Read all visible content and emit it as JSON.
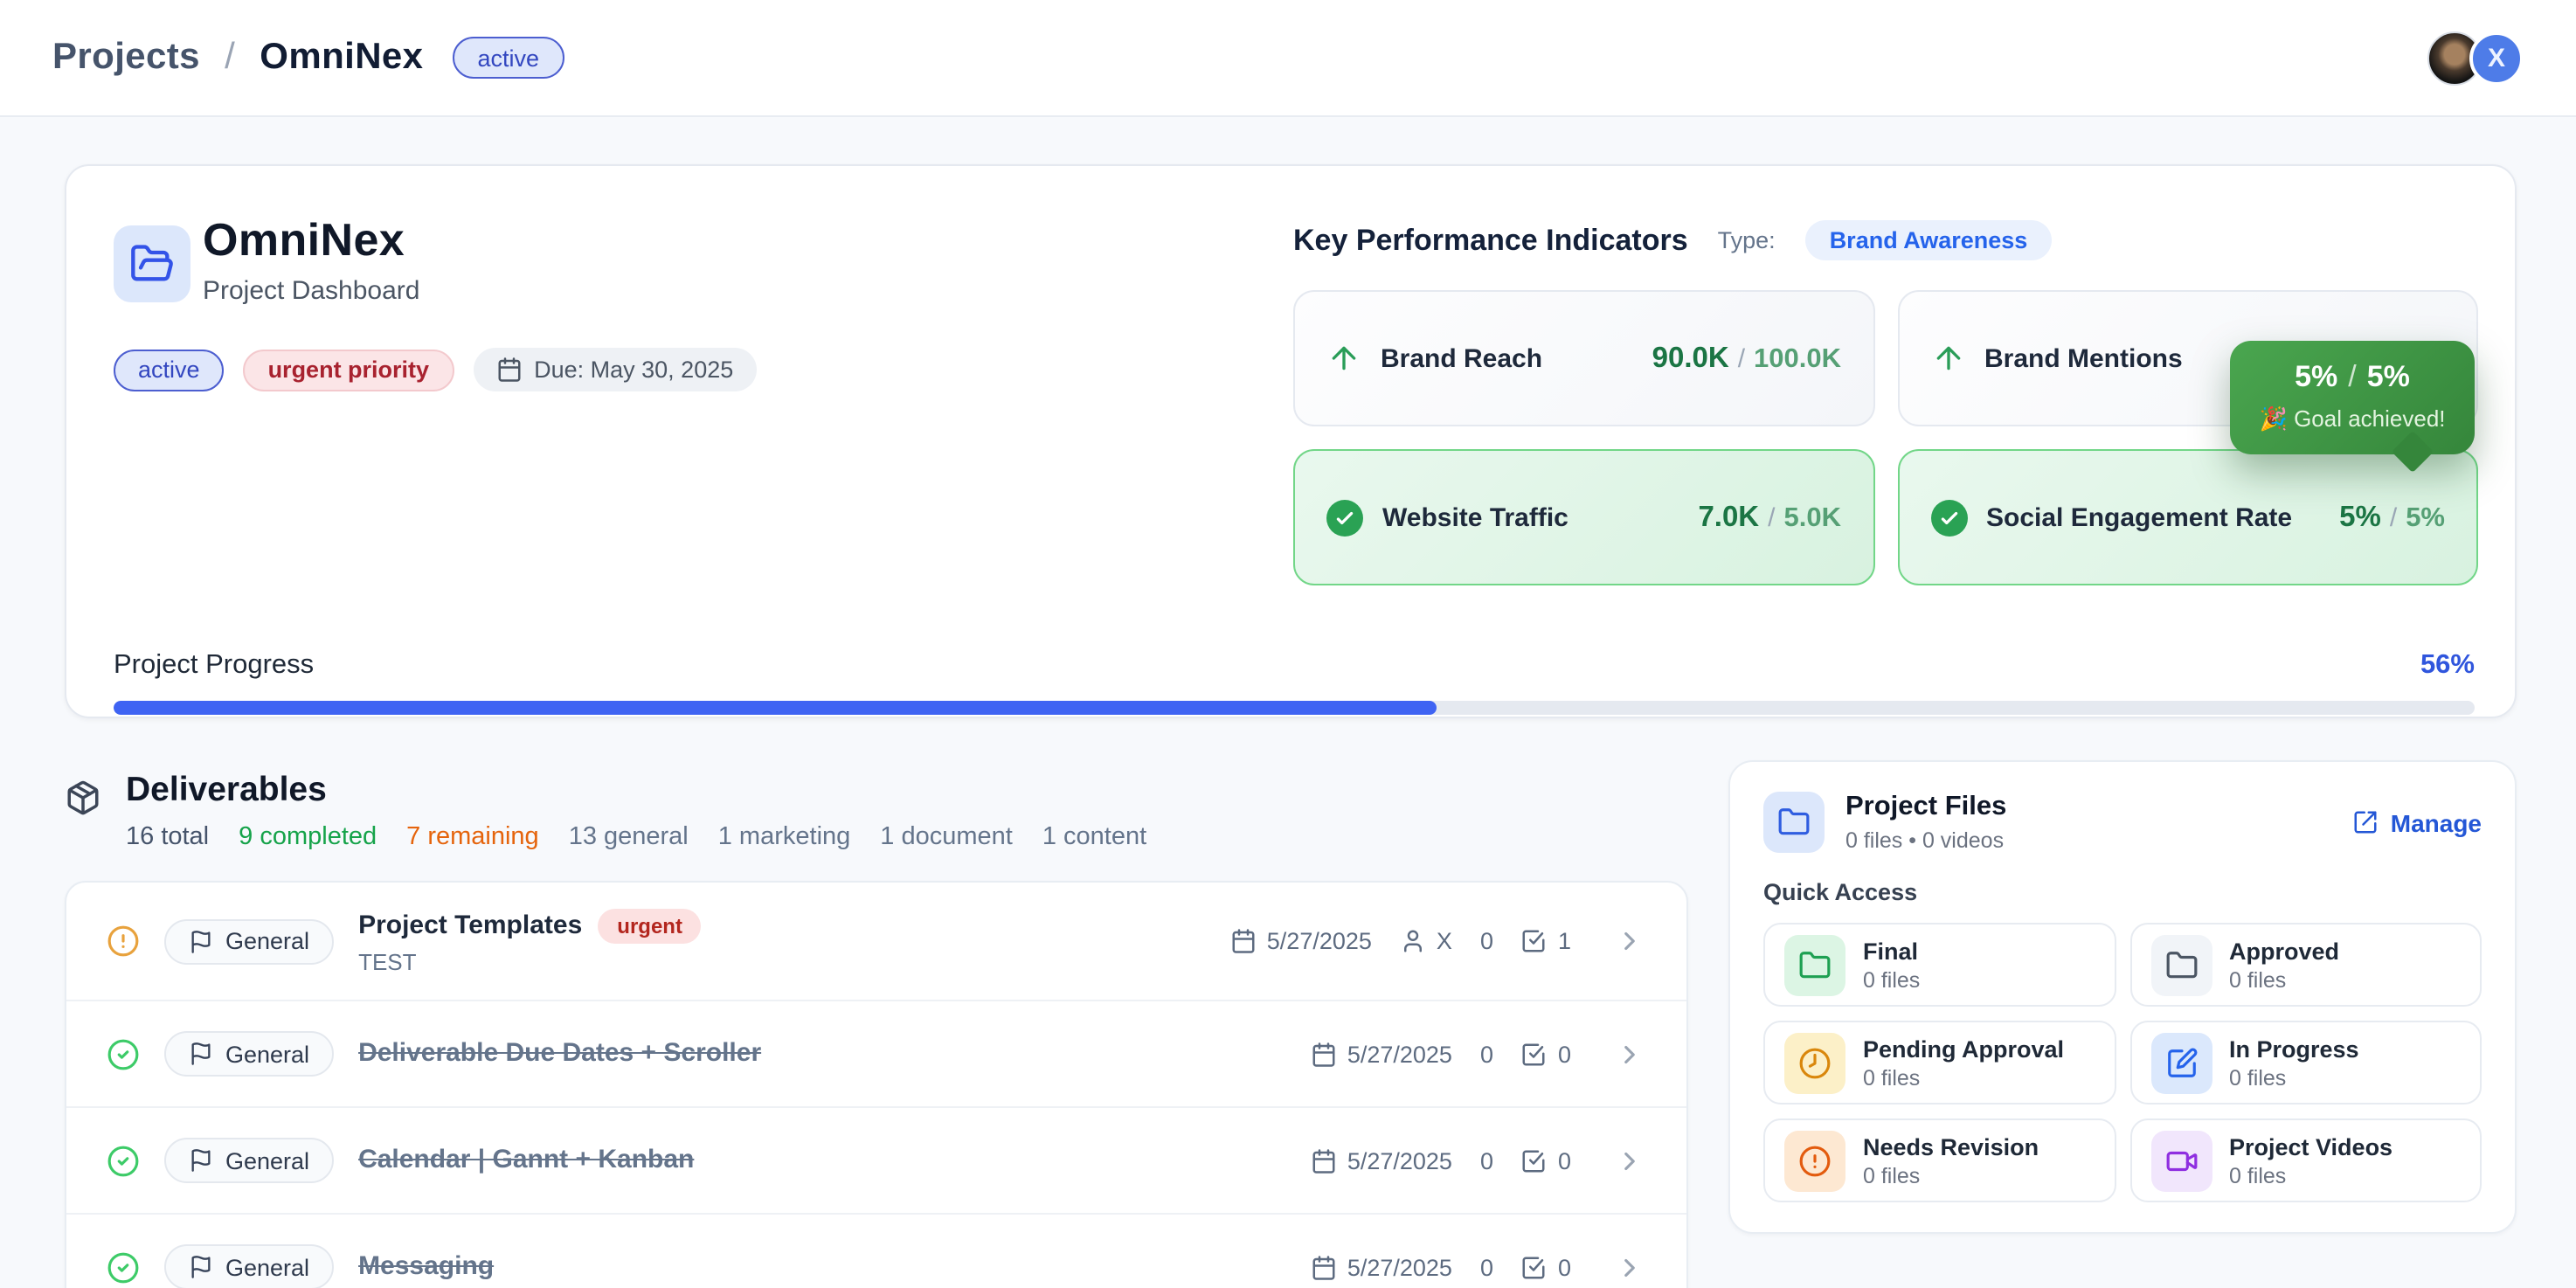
{
  "header": {
    "breadcrumb": {
      "parent": "Projects",
      "separator": "/",
      "current": "OmniNex"
    },
    "status_badge": "active",
    "avatar_initial": "X"
  },
  "project": {
    "title": "OmniNex",
    "subtitle": "Project Dashboard",
    "badges": {
      "status": "active",
      "priority": "urgent priority",
      "due": "Due: May 30, 2025"
    },
    "progress": {
      "label": "Project Progress",
      "percent": "56%",
      "value": 56
    }
  },
  "kpi": {
    "heading": "Key Performance Indicators",
    "type_label": "Type:",
    "type_value": "Brand Awareness",
    "cards": [
      {
        "label": "Brand Reach",
        "value": "90.0K",
        "sep": "/",
        "target": "100.0K",
        "achieved": false
      },
      {
        "label": "Brand Mentions",
        "achieved": false
      },
      {
        "label": "Website Traffic",
        "value": "7.0K",
        "sep": "/",
        "target": "5.0K",
        "achieved": true
      },
      {
        "label": "Social Engagement Rate",
        "value": "5%",
        "sep": "/",
        "target": "5%",
        "achieved": true
      }
    ],
    "tooltip": {
      "value": "5%",
      "sep": "/",
      "target": "5%",
      "message": "🎉 Goal achieved!"
    }
  },
  "deliverables": {
    "heading": "Deliverables",
    "stats": {
      "total": "16 total",
      "completed": "9 completed",
      "remaining": "7 remaining",
      "others": [
        "13 general",
        "1 marketing",
        "1 document",
        "1 content"
      ]
    },
    "rows": [
      {
        "category": "General",
        "title": "Project Templates",
        "badge": "urgent",
        "subtitle": "TEST",
        "date": "5/27/2025",
        "assignee": "X",
        "comments": "0",
        "subtasks": "1",
        "completed": false
      },
      {
        "category": "General",
        "title": "Deliverable Due Dates + Scroller",
        "date": "5/27/2025",
        "comments": "0",
        "subtasks": "0",
        "completed": true
      },
      {
        "category": "General",
        "title": "Calendar | Gannt + Kanban",
        "date": "5/27/2025",
        "comments": "0",
        "subtasks": "0",
        "completed": true
      },
      {
        "category": "General",
        "title": "Messaging",
        "date": "5/27/2025",
        "comments": "0",
        "subtasks": "0",
        "completed": true
      }
    ]
  },
  "project_files": {
    "title": "Project Files",
    "subtitle": "0 files • 0 videos",
    "manage_label": "Manage",
    "quick_access_label": "Quick Access",
    "folders": [
      {
        "label": "Final",
        "count": "0 files"
      },
      {
        "label": "Approved",
        "count": "0 files"
      },
      {
        "label": "Pending Approval",
        "count": "0 files"
      },
      {
        "label": "In Progress",
        "count": "0 files"
      },
      {
        "label": "Needs Revision",
        "count": "0 files"
      },
      {
        "label": "Project Videos",
        "count": "0 files"
      }
    ]
  },
  "colors": {
    "accent_blue": "#3e63f3",
    "success_green": "#2aa254",
    "achieved_card_bg": "#e2f5e8",
    "achieved_card_border": "#72d688",
    "tooltip_green": "#3f9544",
    "warning_orange": "#e5640c",
    "urgent_red": "#b3261e"
  }
}
